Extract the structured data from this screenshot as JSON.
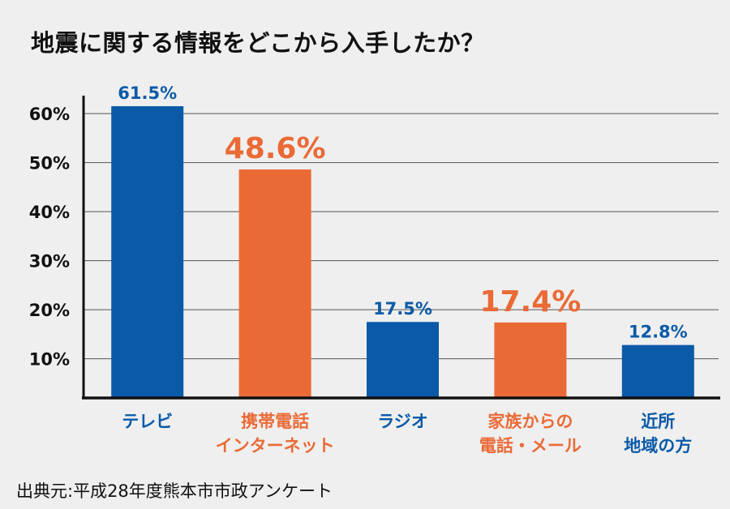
{
  "chart_data": {
    "type": "bar",
    "title": "地震に関する情報をどこから入手したか？",
    "categories": [
      [
        "テレビ"
      ],
      [
        "携帯電話",
        "インターネット"
      ],
      [
        "ラジオ"
      ],
      [
        "家族からの",
        "電話・メール"
      ],
      [
        "近所",
        "地域の方"
      ]
    ],
    "values": [
      61.5,
      48.6,
      17.5,
      17.4,
      12.8
    ],
    "value_labels": [
      "61.5%",
      "48.6%",
      "17.5%",
      "17.4%",
      "12.8%"
    ],
    "highlight": [
      false,
      true,
      false,
      true,
      false
    ],
    "ylim": [
      2,
      66
    ],
    "yticks": [
      10,
      20,
      30,
      40,
      50,
      60
    ],
    "ytick_labels": [
      "10%",
      "20%",
      "30%",
      "40%",
      "50%",
      "60%"
    ],
    "grid": true,
    "xlabel": "",
    "ylabel": "",
    "colors": {
      "normal": "#0a5aa8",
      "highlight": "#ea6a36"
    },
    "source": "出典元:平成28年度熊本市市政アンケート"
  }
}
